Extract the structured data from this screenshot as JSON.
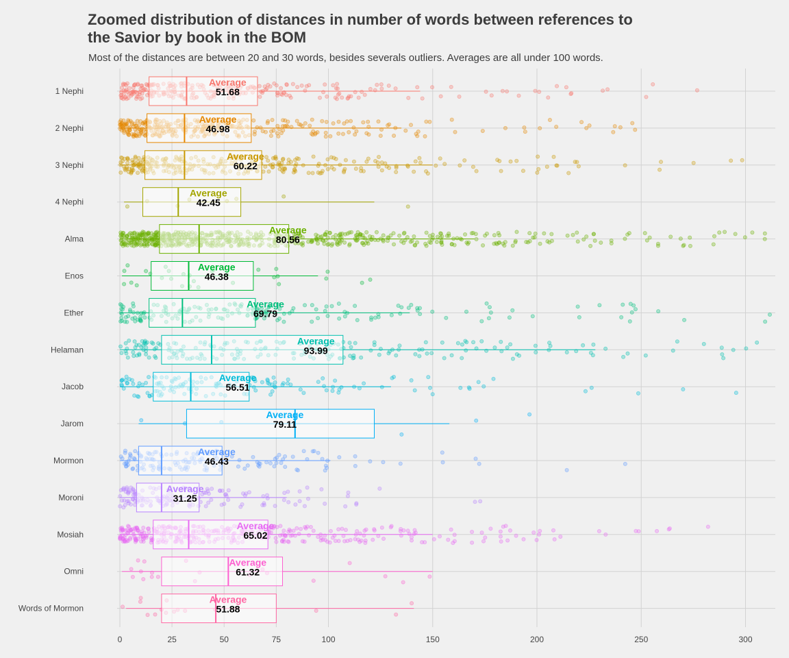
{
  "chart_data": {
    "type": "boxplot",
    "title": "Zoomed distribution of distances in number of  words between references to\n the Savior by book in the BOM",
    "subtitle": "Most of the distances are between 20 and 30 words, besides severals outliers. Averages are all under 100 words.",
    "xlabel": "",
    "ylabel": "",
    "xlim": [
      0,
      315
    ],
    "x_ticks": [
      0,
      25,
      50,
      75,
      100,
      150,
      200,
      250,
      300
    ],
    "average_label": "Average",
    "grid": true,
    "legend": "none",
    "books": [
      {
        "name": "1 Nephi",
        "color": "#f8766d",
        "q1": 14,
        "median": 32,
        "q3": 66,
        "whisker_low": 0,
        "whisker_high": 144,
        "average": 51.68,
        "average_text": "51.68",
        "n_points": 260,
        "point_spread": 0.55
      },
      {
        "name": "2 Nephi",
        "color": "#e58700",
        "q1": 13,
        "median": 31,
        "q3": 63,
        "whisker_low": 0,
        "whisker_high": 135,
        "average": 46.98,
        "average_text": "46.98",
        "n_points": 330,
        "point_spread": 0.6
      },
      {
        "name": "3 Nephi",
        "color": "#c99800",
        "q1": 12,
        "median": 31,
        "q3": 68,
        "whisker_low": 0,
        "whisker_high": 150,
        "average": 60.22,
        "average_text": "60.22",
        "n_points": 300,
        "point_spread": 0.6
      },
      {
        "name": "4 Nephi",
        "color": "#a3a500",
        "q1": 11,
        "median": 28,
        "q3": 58,
        "whisker_low": 2,
        "whisker_high": 122,
        "average": 42.45,
        "average_text": "42.45",
        "n_points": 8,
        "point_spread": 0.8
      },
      {
        "name": "Alma",
        "color": "#6bb100",
        "q1": 19,
        "median": 38,
        "q3": 81,
        "whisker_low": 0,
        "whisker_high": 170,
        "average": 80.56,
        "average_text": "80.56",
        "n_points": 620,
        "point_spread": 0.5
      },
      {
        "name": "Enos",
        "color": "#00ba38",
        "q1": 15,
        "median": 33,
        "q3": 64,
        "whisker_low": 1,
        "whisker_high": 95,
        "average": 46.38,
        "average_text": "46.38",
        "n_points": 30,
        "point_spread": 0.8
      },
      {
        "name": "Ether",
        "color": "#00bf7d",
        "q1": 14,
        "median": 30,
        "q3": 65,
        "whisker_low": 0,
        "whisker_high": 139,
        "average": 69.79,
        "average_text": "69.79",
        "n_points": 180,
        "point_spread": 0.65
      },
      {
        "name": "Helaman",
        "color": "#00c0af",
        "q1": 20,
        "median": 44,
        "q3": 107,
        "whisker_low": 0,
        "whisker_high": 228,
        "average": 93.99,
        "average_text": "93.99",
        "n_points": 210,
        "point_spread": 0.65
      },
      {
        "name": "Jacob",
        "color": "#00bcd8",
        "q1": 16,
        "median": 34,
        "q3": 62,
        "whisker_low": 0,
        "whisker_high": 130,
        "average": 56.51,
        "average_text": "56.51",
        "n_points": 150,
        "point_spread": 0.7
      },
      {
        "name": "Jarom",
        "color": "#00b0f6",
        "q1": 32,
        "median": 84,
        "q3": 122,
        "whisker_low": 9,
        "whisker_high": 158,
        "average": 79.11,
        "average_text": "79.11",
        "n_points": 6,
        "point_spread": 0.8
      },
      {
        "name": "Mormon",
        "color": "#619cff",
        "q1": 9,
        "median": 20,
        "q3": 49,
        "whisker_low": 0,
        "whisker_high": 101,
        "average": 46.43,
        "average_text": "46.43",
        "n_points": 150,
        "point_spread": 0.7
      },
      {
        "name": "Moroni",
        "color": "#b983ff",
        "q1": 8,
        "median": 20,
        "q3": 38,
        "whisker_low": 0,
        "whisker_high": 80,
        "average": 31.25,
        "average_text": "31.25",
        "n_points": 150,
        "point_spread": 0.7
      },
      {
        "name": "Mosiah",
        "color": "#e76bf3",
        "q1": 16,
        "median": 33,
        "q3": 71,
        "whisker_low": 0,
        "whisker_high": 150,
        "average": 65.02,
        "average_text": "65.02",
        "n_points": 360,
        "point_spread": 0.6
      },
      {
        "name": "Omni",
        "color": "#fd61d1",
        "q1": 20,
        "median": 52,
        "q3": 78,
        "whisker_low": 1,
        "whisker_high": 150,
        "average": 61.32,
        "average_text": "61.32",
        "n_points": 20,
        "point_spread": 0.8
      },
      {
        "name": "Words of Mormon",
        "color": "#ff67a4",
        "q1": 20,
        "median": 46,
        "q3": 75,
        "whisker_low": 3,
        "whisker_high": 141,
        "average": 51.88,
        "average_text": "51.88",
        "n_points": 15,
        "point_spread": 0.8
      }
    ]
  }
}
